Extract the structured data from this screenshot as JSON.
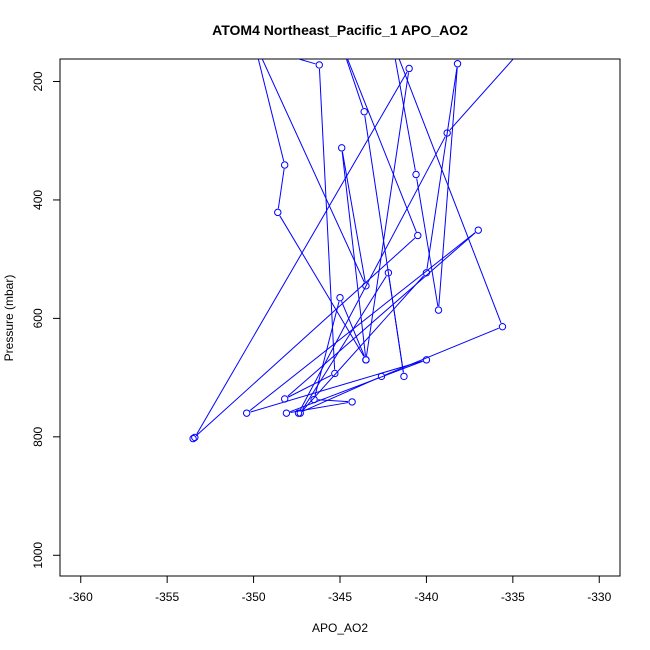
{
  "chart_data": {
    "type": "line",
    "title": "ATOM4 Northeast_Pacific_1 APO_AO2",
    "xlabel": "APO_AO2",
    "ylabel": "Pressure (mbar)",
    "xlim": [
      -361.2,
      -328.8
    ],
    "ylim": [
      1035,
      162
    ],
    "y_reversed": true,
    "grid": false,
    "legend": "none",
    "x_ticks": [
      -360,
      -355,
      -350,
      -345,
      -340,
      -335,
      -330
    ],
    "y_ticks": [
      200,
      400,
      600,
      800,
      1000
    ],
    "series": [
      {
        "color": "#0000ff",
        "marker": "open-circle",
        "points": [
          {
            "x": -351.2,
            "y": 130
          },
          {
            "x": -346.2,
            "y": 172
          },
          {
            "x": -345.3,
            "y": 693
          },
          {
            "x": -348.2,
            "y": 736
          },
          {
            "x": -337.0,
            "y": 451
          },
          {
            "x": -350.4,
            "y": 760
          },
          {
            "x": -340.0,
            "y": 670
          },
          {
            "x": -348.1,
            "y": 760
          },
          {
            "x": -344.3,
            "y": 741
          },
          {
            "x": -346.5,
            "y": 737
          },
          {
            "x": -345.0,
            "y": 565
          },
          {
            "x": -343.5,
            "y": 670
          },
          {
            "x": -344.9,
            "y": 312
          },
          {
            "x": -343.5,
            "y": 545
          },
          {
            "x": -350.0,
            "y": 130
          },
          {
            "x": -348.2,
            "y": 341
          },
          {
            "x": -348.6,
            "y": 421
          },
          {
            "x": -343.5,
            "y": 670
          },
          {
            "x": -341.0,
            "y": 178
          },
          {
            "x": -353.4,
            "y": 801
          },
          {
            "x": -353.5,
            "y": 803
          },
          {
            "x": -340.5,
            "y": 460
          },
          {
            "x": -345.0,
            "y": 130
          },
          {
            "x": -343.6,
            "y": 251
          },
          {
            "x": -341.3,
            "y": 698
          },
          {
            "x": -342.2,
            "y": 523
          },
          {
            "x": -347.3,
            "y": 760
          },
          {
            "x": -340.0,
            "y": 523
          },
          {
            "x": -338.2,
            "y": 170
          },
          {
            "x": -339.3,
            "y": 586
          },
          {
            "x": -340.6,
            "y": 357
          },
          {
            "x": -342.0,
            "y": 130
          },
          {
            "x": -335.6,
            "y": 614
          },
          {
            "x": -342.6,
            "y": 698
          },
          {
            "x": -347.4,
            "y": 760
          },
          {
            "x": -338.8,
            "y": 287
          },
          {
            "x": -334.0,
            "y": 130
          }
        ]
      }
    ]
  }
}
